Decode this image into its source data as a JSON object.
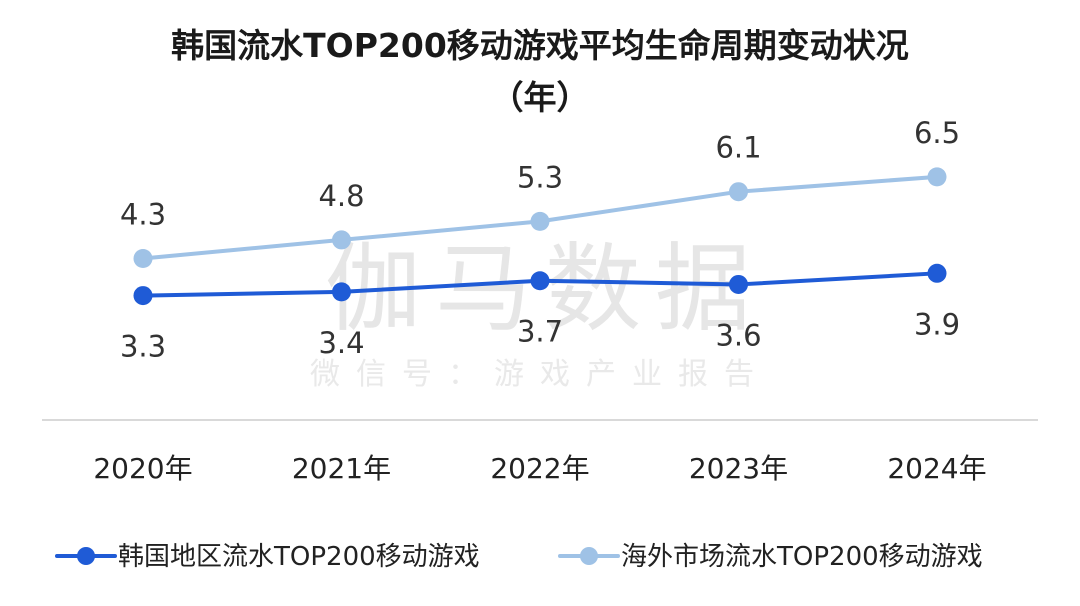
{
  "chart_data": {
    "type": "line",
    "title": "韩国流水TOP200移动游戏平均生命周期变动状况",
    "subtitle": "（年）",
    "categories": [
      "2020年",
      "2021年",
      "2022年",
      "2023年",
      "2024年"
    ],
    "series": [
      {
        "name": "韩国地区流水TOP200移动游戏",
        "values": [
          3.3,
          3.4,
          3.7,
          3.6,
          3.9
        ],
        "color": "#1f5bd6",
        "label_position": "below"
      },
      {
        "name": "海外市场流水TOP200移动游戏",
        "values": [
          4.3,
          4.8,
          5.3,
          6.1,
          6.5
        ],
        "color": "#9fc2e6",
        "label_position": "above"
      }
    ],
    "xlabel": "",
    "ylabel": "",
    "ylim": [
      0,
      10
    ],
    "grid": false,
    "legend": "bottom"
  },
  "watermark": {
    "main": "伽马数据",
    "sub": "微信号：游戏产业报告"
  },
  "colors": {
    "axis": "#d9d9d9"
  }
}
